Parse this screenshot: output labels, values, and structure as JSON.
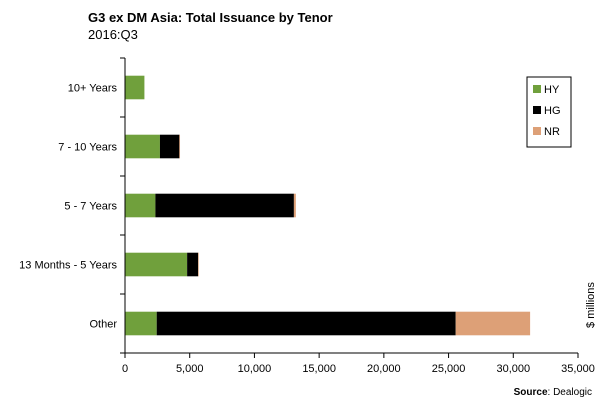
{
  "chart_data": {
    "type": "bar",
    "orientation": "horizontal",
    "stacked": true,
    "title": "G3 ex DM Asia:  Total Issuance by Tenor",
    "subtitle": "2016:Q3",
    "categories": [
      "10+ Years",
      "7 - 10 Years",
      "5 - 7 Years",
      "13 Months - 5 Years",
      "Other"
    ],
    "series": [
      {
        "name": "HY",
        "color": "#70A03C",
        "values": [
          1500,
          2700,
          2350,
          4800,
          2450
        ]
      },
      {
        "name": "HG",
        "color": "#000000",
        "values": [
          0,
          1500,
          10700,
          850,
          23100
        ]
      },
      {
        "name": "NR",
        "color": "#DDA077",
        "values": [
          0,
          50,
          150,
          50,
          5750
        ]
      }
    ],
    "xlim": [
      0,
      35000
    ],
    "xticks": [
      "0",
      "5,000",
      "10,000",
      "15,000",
      "20,000",
      "25,000",
      "30,000",
      "35,000"
    ],
    "xlabel": "",
    "ylabel": "$ millions",
    "grid": false,
    "legend": "top-right",
    "source_label": "Source",
    "source_value": ": Dealogic"
  }
}
